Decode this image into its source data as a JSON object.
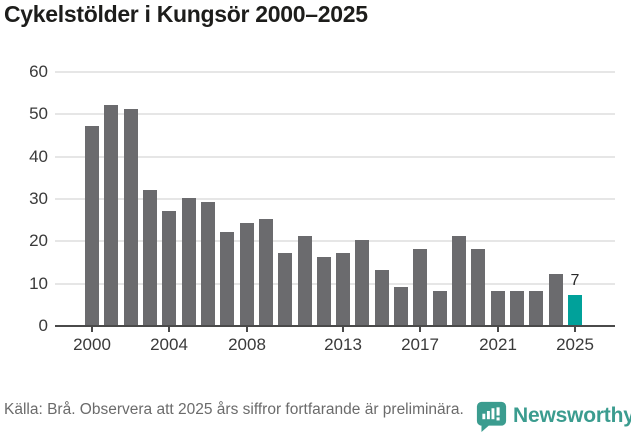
{
  "header": {
    "title": "Cykelstölder i Kungsör 2000–2025"
  },
  "chart_data": {
    "type": "bar",
    "title": "Cykelstölder i Kungsör 2000–2025",
    "categories": [
      2000,
      2001,
      2002,
      2003,
      2004,
      2005,
      2006,
      2007,
      2008,
      2009,
      2010,
      2011,
      2012,
      2013,
      2014,
      2015,
      2016,
      2017,
      2018,
      2019,
      2020,
      2021,
      2022,
      2023,
      2024,
      2025
    ],
    "values": [
      47,
      52,
      51,
      32,
      27,
      30,
      29,
      22,
      24,
      25,
      17,
      21,
      16,
      17,
      20,
      13,
      9,
      18,
      8,
      21,
      18,
      8,
      8,
      8,
      12,
      7
    ],
    "ylim": [
      0,
      60
    ],
    "yticks": [
      0,
      10,
      20,
      30,
      40,
      50,
      60
    ],
    "xtick_years": [
      2000,
      2004,
      2008,
      2013,
      2017,
      2021,
      2025
    ],
    "grid": "horizontal",
    "legend": "none",
    "bar_color": "#6b6b6e",
    "highlight_color": "#00a19a",
    "highlight_year": 2025,
    "annotations": [
      {
        "year": 2025,
        "text": "7"
      }
    ]
  },
  "footer": {
    "source_note": "Källa: Brå. Observera att 2025 års siffror fortfarande är preliminära.",
    "brand": {
      "name": "Newsworthy",
      "color": "#3b9c8f",
      "icon": "newsworthy-speech-bubble-chart-icon"
    }
  }
}
